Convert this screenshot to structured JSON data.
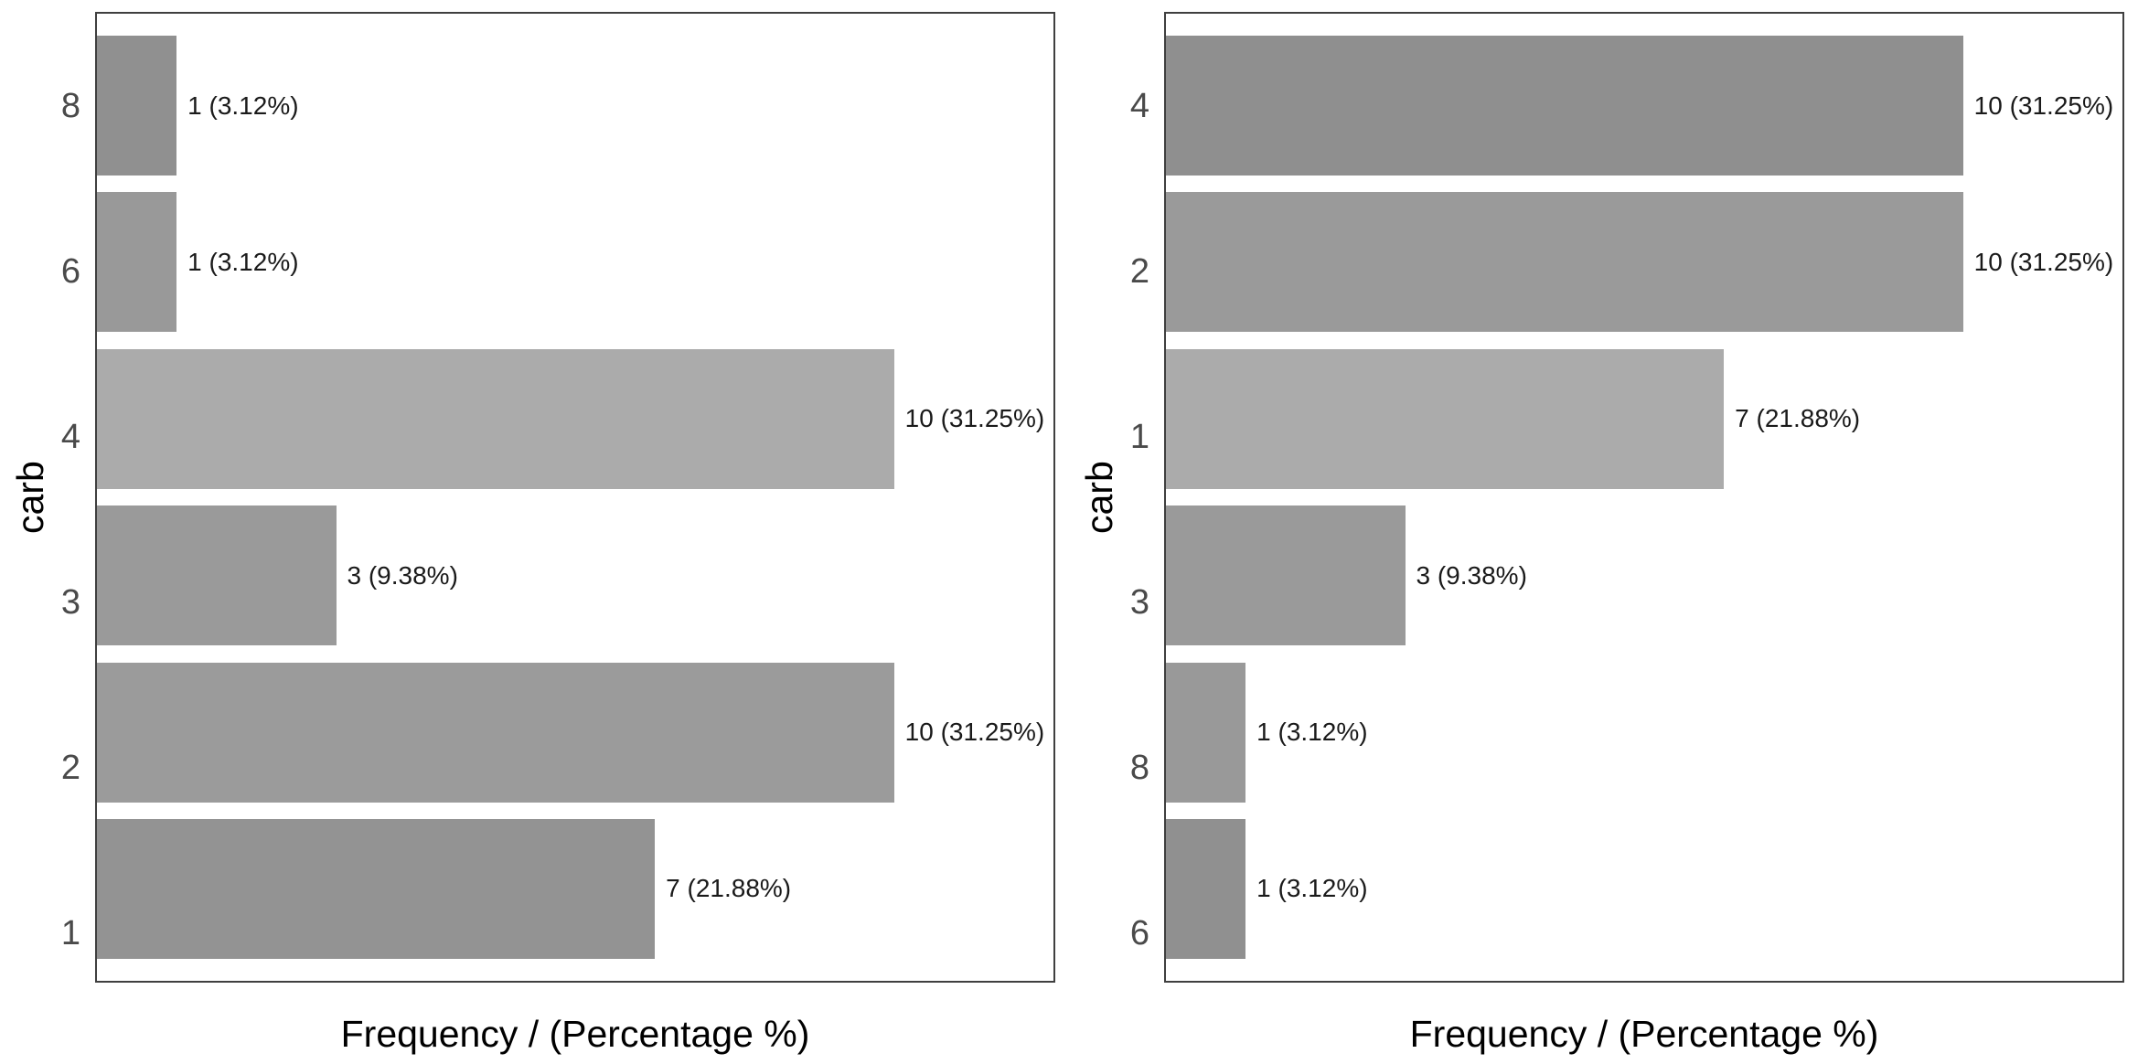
{
  "chart_data": [
    {
      "type": "bar",
      "orientation": "horizontal",
      "title": "",
      "xlabel": "Frequency / (Percentage %)",
      "ylabel": "carb",
      "categories": [
        "8",
        "6",
        "4",
        "3",
        "2",
        "1"
      ],
      "values": [
        1,
        1,
        10,
        3,
        10,
        7
      ],
      "value_labels": [
        "1 (3.12%)",
        "1 (3.12%)",
        "10 (31.25%)",
        "3 (9.38%)",
        "10 (31.25%)",
        "7 (21.88%)"
      ],
      "percentages": [
        3.12,
        3.12,
        31.25,
        9.38,
        31.25,
        21.88
      ],
      "bar_colors": [
        "#909090",
        "#999999",
        "#ababab",
        "#9a9a9a",
        "#9b9b9b",
        "#939393"
      ],
      "xmax": 12,
      "grid": false,
      "legend": "none",
      "panel_border_color": "#3f3f3f",
      "tick_label_color": "#4a4a4a"
    },
    {
      "type": "bar",
      "orientation": "horizontal",
      "title": "",
      "xlabel": "Frequency / (Percentage %)",
      "ylabel": "carb",
      "categories": [
        "4",
        "2",
        "1",
        "3",
        "8",
        "6"
      ],
      "values": [
        10,
        10,
        7,
        3,
        1,
        1
      ],
      "value_labels": [
        "10 (31.25%)",
        "10 (31.25%)",
        "7 (21.88%)",
        "3 (9.38%)",
        "1 (3.12%)",
        "1 (3.12%)"
      ],
      "percentages": [
        31.25,
        31.25,
        21.88,
        9.38,
        3.12,
        3.12
      ],
      "bar_colors": [
        "#8f8f8f",
        "#9a9a9a",
        "#ababab",
        "#9a9a9a",
        "#999999",
        "#909090"
      ],
      "xmax": 12,
      "grid": false,
      "legend": "none",
      "panel_border_color": "#3f3f3f",
      "tick_label_color": "#4a4a4a"
    }
  ]
}
